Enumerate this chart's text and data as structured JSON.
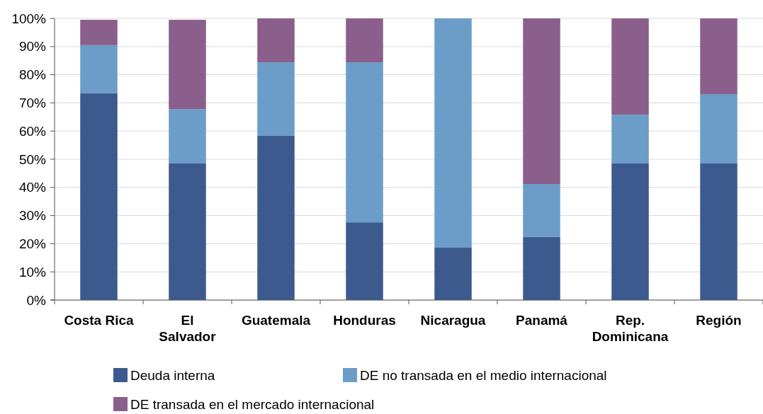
{
  "chart_data": {
    "type": "bar",
    "stacked": true,
    "categories": [
      "Costa Rica",
      "El Salvador",
      "Guatemala",
      "Honduras",
      "Nicaragua",
      "Panamá",
      "Rep. Dominicana",
      "Región"
    ],
    "series": [
      {
        "name": "Deuda interna",
        "color": "#3d5a8f",
        "values": [
          73.4,
          48.5,
          58.3,
          27.6,
          18.6,
          22.4,
          48.5,
          48.5
        ]
      },
      {
        "name": "DE no transada en el medio internacional",
        "color": "#6b9dc8",
        "values": [
          17.1,
          19.3,
          26.1,
          56.8,
          81.4,
          18.8,
          17.3,
          24.6
        ]
      },
      {
        "name": "DE transada en el mercado internacional",
        "color": "#8b5f8c",
        "values": [
          9.0,
          31.7,
          15.6,
          15.6,
          0,
          58.8,
          34.2,
          26.9
        ]
      }
    ],
    "ylim": [
      0,
      100
    ],
    "yticks": [
      {
        "value": 0,
        "label": "0%"
      },
      {
        "value": 10,
        "label": "10%"
      },
      {
        "value": 20,
        "label": "20%"
      },
      {
        "value": 30,
        "label": "30%"
      },
      {
        "value": 40,
        "label": "40%"
      },
      {
        "value": 50,
        "label": "50%"
      },
      {
        "value": 60,
        "label": "60%"
      },
      {
        "value": 70,
        "label": "70%"
      },
      {
        "value": 80,
        "label": "80%"
      },
      {
        "value": 90,
        "label": "90%"
      },
      {
        "value": 100,
        "label": "100%"
      }
    ],
    "grid": "y",
    "legend": "bottom"
  }
}
